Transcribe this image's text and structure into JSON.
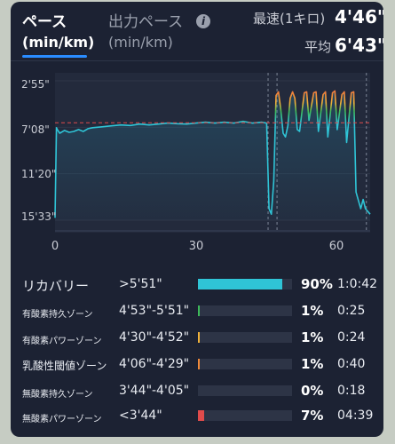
{
  "tabs": {
    "pace_label": "ペース",
    "pace_unit": "(min/km)",
    "output_label": "出力ペース",
    "output_unit": "(min/km)",
    "info_glyph": "i"
  },
  "stats": {
    "fastest_label": "最速(1キロ)",
    "fastest_value": "4'46\"",
    "average_label": "平均",
    "average_value": "6'43\""
  },
  "chart_data": {
    "type": "line",
    "y_axis_labels": [
      "2'55\"",
      "7'08\"",
      "11'20\"",
      "15'33\""
    ],
    "x_axis_labels": [
      "0",
      "30",
      "60"
    ],
    "xlim": [
      0,
      67
    ],
    "average_line": "6'43\"",
    "series": [
      {
        "x": [
          0,
          0.3,
          0.5,
          1,
          2,
          3,
          4,
          5,
          6,
          7,
          8,
          10,
          12,
          14,
          16,
          18,
          20,
          22,
          24,
          26,
          28,
          30,
          32,
          34,
          36,
          38,
          40,
          42,
          44,
          45,
          45.5,
          46,
          46.5,
          47,
          47.5,
          48,
          48.5,
          49,
          49.5,
          50,
          50.5,
          51,
          51.5,
          52,
          53,
          53.5,
          54,
          55,
          55.5,
          56,
          57,
          57.5,
          58,
          59,
          59.5,
          60,
          61,
          61.5,
          62,
          63,
          63.5,
          64,
          65,
          65.5,
          66,
          67
        ],
        "y_pace": [
          "15'20\"",
          "7'10\"",
          "7'20\"",
          "7'40\"",
          "7'25\"",
          "7'35\"",
          "7'30\"",
          "7'20\"",
          "7'30\"",
          "7'15\"",
          "7'10\"",
          "7'05\"",
          "7'00\"",
          "6'55\"",
          "6'58\"",
          "6'50\"",
          "6'55\"",
          "6'50\"",
          "6'45\"",
          "6'48\"",
          "6'50\"",
          "6'45\"",
          "6'40\"",
          "6'45\"",
          "6'40\"",
          "6'45\"",
          "6'35\"",
          "6'45\"",
          "6'40\"",
          "6'45\"",
          "14'30\"",
          "15'00\"",
          "12'00\"",
          "4'15\"",
          "3'55\"",
          "5'30\"",
          "7'40\"",
          "8'00\"",
          "7'00\"",
          "4'30\"",
          "3'55\"",
          "4'30\"",
          "7'20\"",
          "7'30\"",
          "4'00\"",
          "3'55\"",
          "6'30\"",
          "4'00\"",
          "3'55\"",
          "7'30\"",
          "4'10\"",
          "3'55\"",
          "8'00\"",
          "4'00\"",
          "3'50\"",
          "7'20\"",
          "4'10\"",
          "3'55\"",
          "8'30\"",
          "4'00\"",
          "3'55\"",
          "13'00\"",
          "14'30\"",
          "13'40\"",
          "14'30\"",
          "15'00\""
        ]
      }
    ]
  },
  "zones": [
    {
      "name": "リカバリー",
      "range": ">5'51\"",
      "percent": "90%",
      "time": "1:0:42",
      "fraction": 0.9,
      "color": "#2fc4d6"
    },
    {
      "name": "有酸素持久ゾーン",
      "range": "4'53\"-5'51\"",
      "percent": "1%",
      "time": "0:25",
      "fraction": 0.01,
      "color": "#3dbb5a"
    },
    {
      "name": "有酸素パワーゾーン",
      "range": "4'30\"-4'52\"",
      "percent": "1%",
      "time": "0:24",
      "fraction": 0.01,
      "color": "#f0b23a"
    },
    {
      "name": "乳酸性閾値ゾーン",
      "range": "4'06\"-4'29\"",
      "percent": "1%",
      "time": "0:40",
      "fraction": 0.01,
      "color": "#f08a3a"
    },
    {
      "name": "無酸素持久ゾーン",
      "range": "3'44\"-4'05\"",
      "percent": "0%",
      "time": "0:18",
      "fraction": 0.0,
      "color": "#e8634a"
    },
    {
      "name": "無酸素パワーゾーン",
      "range": "<3'44\"",
      "percent": "7%",
      "time": "04:39",
      "fraction": 0.07,
      "color": "#e04b4b"
    }
  ]
}
